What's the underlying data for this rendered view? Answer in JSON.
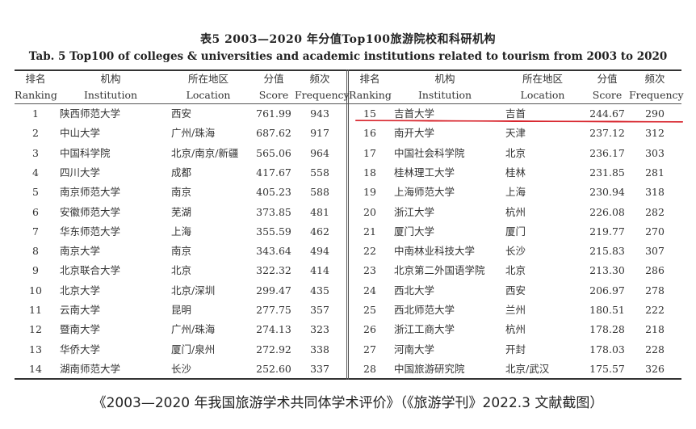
{
  "title_cn": "表5  2003—2020 年分值Top100旅游院校和科研机构",
  "title_en": "Tab. 5   Top100 of colleges & universities and academic institutions related to tourism from 2003 to 2020",
  "headers": {
    "ranking_cn": "排名",
    "ranking_en": "Ranking",
    "institution_cn": "机构",
    "institution_en": "Institution",
    "location_cn": "所在地区",
    "location_en": "Location",
    "score_cn": "分值",
    "score_en": "Score",
    "frequency_cn": "频次",
    "frequency_en": "Frequency"
  },
  "left_rows": [
    {
      "rank": "1",
      "institution": "陕西师范大学",
      "location": "西安",
      "score": "761.99",
      "frequency": "943"
    },
    {
      "rank": "2",
      "institution": "中山大学",
      "location": "广州/珠海",
      "score": "687.62",
      "frequency": "917"
    },
    {
      "rank": "3",
      "institution": "中国科学院",
      "location": "北京/南京/新疆",
      "score": "565.06",
      "frequency": "964"
    },
    {
      "rank": "4",
      "institution": "四川大学",
      "location": "成都",
      "score": "417.67",
      "frequency": "558"
    },
    {
      "rank": "5",
      "institution": "南京师范大学",
      "location": "南京",
      "score": "405.23",
      "frequency": "588"
    },
    {
      "rank": "6",
      "institution": "安徽师范大学",
      "location": "芜湖",
      "score": "373.85",
      "frequency": "481"
    },
    {
      "rank": "7",
      "institution": "华东师范大学",
      "location": "上海",
      "score": "355.59",
      "frequency": "462"
    },
    {
      "rank": "8",
      "institution": "南京大学",
      "location": "南京",
      "score": "343.64",
      "frequency": "494"
    },
    {
      "rank": "9",
      "institution": "北京联合大学",
      "location": "北京",
      "score": "322.32",
      "frequency": "414"
    },
    {
      "rank": "10",
      "institution": "北京大学",
      "location": "北京/深圳",
      "score": "299.47",
      "frequency": "435"
    },
    {
      "rank": "11",
      "institution": "云南大学",
      "location": "昆明",
      "score": "277.75",
      "frequency": "357"
    },
    {
      "rank": "12",
      "institution": "暨南大学",
      "location": "广州/珠海",
      "score": "274.13",
      "frequency": "323"
    },
    {
      "rank": "13",
      "institution": "华侨大学",
      "location": "厦门/泉州",
      "score": "272.92",
      "frequency": "338"
    },
    {
      "rank": "14",
      "institution": "湖南师范大学",
      "location": "长沙",
      "score": "252.60",
      "frequency": "337"
    }
  ],
  "right_rows": [
    {
      "rank": "15",
      "institution": "吉首大学",
      "location": "吉首",
      "score": "244.67",
      "frequency": "290"
    },
    {
      "rank": "16",
      "institution": "南开大学",
      "location": "天津",
      "score": "237.12",
      "frequency": "312"
    },
    {
      "rank": "17",
      "institution": "中国社会科学院",
      "location": "北京",
      "score": "236.17",
      "frequency": "303"
    },
    {
      "rank": "18",
      "institution": "桂林理工大学",
      "location": "桂林",
      "score": "231.85",
      "frequency": "281"
    },
    {
      "rank": "19",
      "institution": "上海师范大学",
      "location": "上海",
      "score": "230.94",
      "frequency": "318"
    },
    {
      "rank": "20",
      "institution": "浙江大学",
      "location": "杭州",
      "score": "226.08",
      "frequency": "282"
    },
    {
      "rank": "21",
      "institution": "厦门大学",
      "location": "厦门",
      "score": "219.77",
      "frequency": "270"
    },
    {
      "rank": "22",
      "institution": "中南林业科技大学",
      "location": "长沙",
      "score": "215.83",
      "frequency": "307"
    },
    {
      "rank": "23",
      "institution": "北京第二外国语学院",
      "location": "北京",
      "score": "213.30",
      "frequency": "286"
    },
    {
      "rank": "24",
      "institution": "西北大学",
      "location": "西安",
      "score": "206.97",
      "frequency": "278"
    },
    {
      "rank": "25",
      "institution": "西北师范大学",
      "location": "兰州",
      "score": "180.51",
      "frequency": "222"
    },
    {
      "rank": "26",
      "institution": "浙江工商大学",
      "location": "杭州",
      "score": "178.28",
      "frequency": "218"
    },
    {
      "rank": "27",
      "institution": "河南大学",
      "location": "开封",
      "score": "178.03",
      "frequency": "228"
    },
    {
      "rank": "28",
      "institution": "中国旅游研究院",
      "location": "北京/武汉",
      "score": "175.57",
      "frequency": "326"
    }
  ],
  "highlight_color": "#d8262e",
  "caption": "《2003—2020 年我国旅游学术共同体学术评价》（《旅游学刊》2022.3 文献截图）"
}
